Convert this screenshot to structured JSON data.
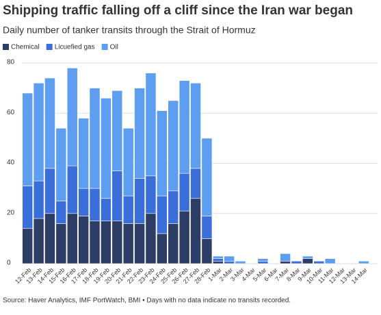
{
  "chart_data": {
    "type": "stacked_bar",
    "title": "Shipping traffic falling off a cliff since the Iran war began",
    "subtitle": "Daily number of tanker transits through the Strait of Hormuz",
    "source": "Source: Haver Analytics, IMF PortWatch, BMI • Days with no data indicate no transits recorded.",
    "categories": [
      "12-Feb",
      "13-Feb",
      "14-Feb",
      "15-Feb",
      "16-Feb",
      "17-Feb",
      "18-Feb",
      "19-Feb",
      "20-Feb",
      "21-Feb",
      "22-Feb",
      "23-Feb",
      "24-Feb",
      "25-Feb",
      "26-Feb",
      "27-Feb",
      "28-Feb",
      "1-Mar",
      "2-Mar",
      "3-Mar",
      "4-Mar",
      "5-Mar",
      "6-Mar",
      "7-Mar",
      "8-Mar",
      "9-Mar",
      "10-Mar",
      "11-Mar",
      "12-Mar",
      "13-Mar",
      "14-Mar"
    ],
    "series": [
      {
        "name": "Chemical",
        "color": "#2d3d66",
        "values": [
          14,
          18,
          20,
          16,
          20,
          19,
          17,
          17,
          17,
          16,
          16,
          20,
          12,
          16,
          21,
          26,
          10,
          1,
          0,
          0,
          null,
          0,
          null,
          1,
          0,
          2,
          0,
          0,
          null,
          null,
          0
        ]
      },
      {
        "name": "Licuefied gas",
        "color": "#3a6ed8",
        "values": [
          17,
          15,
          18,
          9,
          19,
          11,
          13,
          9,
          20,
          11,
          18,
          15,
          15,
          13,
          15,
          12,
          9,
          1,
          1,
          0,
          null,
          1,
          null,
          0,
          1,
          0,
          1,
          0,
          null,
          null,
          0
        ]
      },
      {
        "name": "Oil",
        "color": "#5e9ef0",
        "values": [
          37,
          39,
          36,
          29,
          39,
          28,
          40,
          40,
          32,
          27,
          36,
          41,
          34,
          36,
          37,
          34,
          31,
          1,
          2,
          1,
          null,
          1,
          null,
          3,
          0,
          1,
          0,
          2,
          null,
          null,
          1
        ]
      }
    ],
    "ylim": [
      0,
      80
    ],
    "yticks": [
      0,
      20,
      40,
      60,
      80
    ],
    "grid": true
  }
}
